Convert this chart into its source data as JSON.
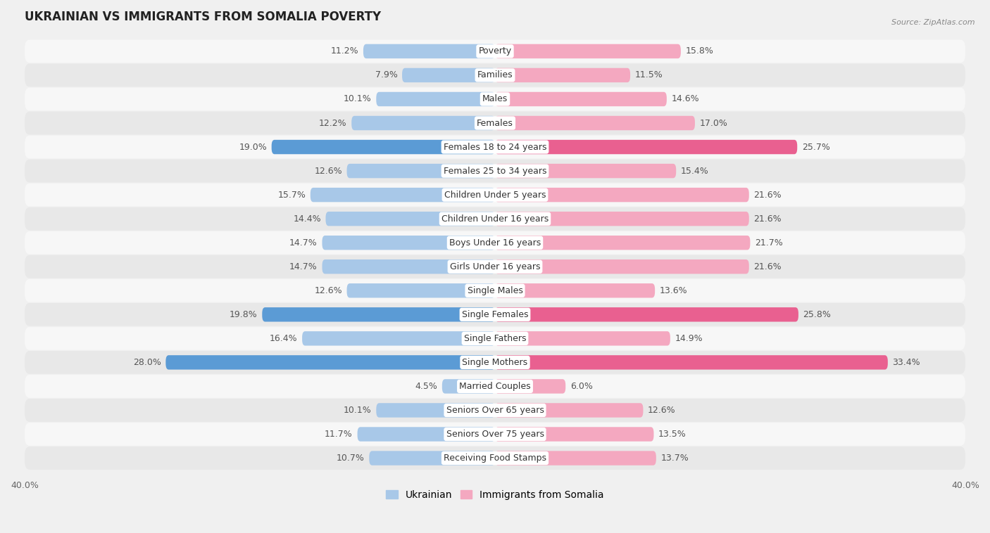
{
  "title": "UKRAINIAN VS IMMIGRANTS FROM SOMALIA POVERTY",
  "source": "Source: ZipAtlas.com",
  "categories": [
    "Poverty",
    "Families",
    "Males",
    "Females",
    "Females 18 to 24 years",
    "Females 25 to 34 years",
    "Children Under 5 years",
    "Children Under 16 years",
    "Boys Under 16 years",
    "Girls Under 16 years",
    "Single Males",
    "Single Females",
    "Single Fathers",
    "Single Mothers",
    "Married Couples",
    "Seniors Over 65 years",
    "Seniors Over 75 years",
    "Receiving Food Stamps"
  ],
  "ukrainian": [
    11.2,
    7.9,
    10.1,
    12.2,
    19.0,
    12.6,
    15.7,
    14.4,
    14.7,
    14.7,
    12.6,
    19.8,
    16.4,
    28.0,
    4.5,
    10.1,
    11.7,
    10.7
  ],
  "somalia": [
    15.8,
    11.5,
    14.6,
    17.0,
    25.7,
    15.4,
    21.6,
    21.6,
    21.7,
    21.6,
    13.6,
    25.8,
    14.9,
    33.4,
    6.0,
    12.6,
    13.5,
    13.7
  ],
  "ukrainian_color": "#a8c8e8",
  "somalia_color": "#f4a8c0",
  "ukrainian_highlight": "#5b9bd5",
  "somalia_highlight": "#e96090",
  "background_color": "#f0f0f0",
  "row_color_even": "#f7f7f7",
  "row_color_odd": "#e8e8e8",
  "xlim": 40.0,
  "bar_height": 0.6,
  "label_fontsize": 9,
  "category_fontsize": 9,
  "title_fontsize": 12,
  "source_fontsize": 8,
  "legend_fontsize": 10,
  "highlight_indices": [
    4,
    11,
    13
  ]
}
